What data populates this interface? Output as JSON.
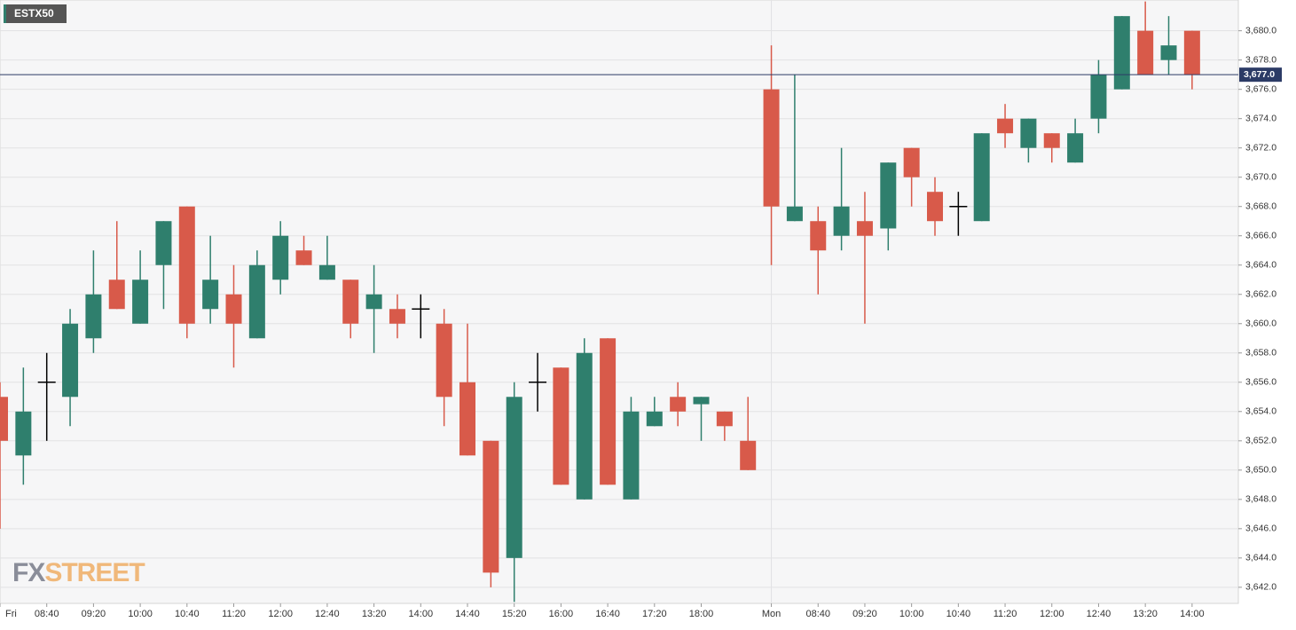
{
  "chart_data": {
    "type": "candlestick",
    "title": "ESTX50",
    "watermark": [
      "FX",
      "STREET"
    ],
    "categories": [
      "Fri",
      null,
      "08:40",
      null,
      "09:20",
      null,
      "10:00",
      null,
      "10:40",
      null,
      "11:20",
      null,
      "12:00",
      null,
      "12:40",
      null,
      "13:20",
      null,
      "14:00",
      null,
      "14:40",
      null,
      "15:20",
      null,
      "16:00",
      null,
      "16:40",
      null,
      "17:20",
      null,
      "18:00",
      null,
      null,
      "Mon",
      null,
      "08:40",
      null,
      "09:20",
      null,
      "10:00",
      null,
      "10:40",
      null,
      "11:20",
      null,
      "12:00",
      null,
      "12:40",
      null,
      "13:20",
      null,
      "14:00"
    ],
    "open": [
      3655,
      3651,
      3656,
      3655,
      3659,
      3663,
      3660,
      3664,
      3668,
      3661,
      3662,
      3659,
      3663,
      3665,
      3663,
      3663,
      3661,
      3661,
      3661,
      3660,
      3656,
      3652,
      3644,
      3656,
      3657,
      3648,
      3659,
      3648,
      3653,
      3655,
      3654.5,
      3654,
      3652,
      3676,
      3667,
      3667,
      3666,
      3667,
      3666.5,
      3672,
      3669,
      3668,
      3667,
      3674,
      3672,
      3673,
      3671,
      3674,
      3676,
      3680,
      3678,
      3680
    ],
    "high": [
      3656,
      3657,
      3658,
      3661,
      3665,
      3667,
      3665,
      3667,
      3668,
      3666,
      3664,
      3665,
      3667,
      3666,
      3666,
      3663,
      3664,
      3662,
      3662,
      3661,
      3660,
      3652,
      3656,
      3658,
      3657,
      3659,
      3659,
      3655,
      3655,
      3656,
      3655,
      3654,
      3655,
      3679,
      3677,
      3668,
      3672,
      3669,
      3671,
      3672,
      3670,
      3669,
      3673,
      3675,
      3674,
      3673,
      3674,
      3678,
      3681,
      3682,
      3681,
      3680
    ],
    "low": [
      3646,
      3649,
      3652,
      3653,
      3658,
      3661,
      3660,
      3661,
      3659,
      3660,
      3657,
      3659,
      3662,
      3664,
      3663,
      3659,
      3658,
      3659,
      3659,
      3653,
      3651,
      3642,
      3641,
      3654,
      3649,
      3648,
      3649,
      3648,
      3653,
      3653,
      3652,
      3652,
      3650,
      3664,
      3667,
      3662,
      3665,
      3660,
      3665,
      3668,
      3666,
      3666,
      3667,
      3672,
      3671,
      3671,
      3671,
      3673,
      3676,
      3677,
      3677,
      3676
    ],
    "close": [
      3652,
      3654,
      3656,
      3660,
      3662,
      3661,
      3663,
      3667,
      3660,
      3663,
      3660,
      3664,
      3666,
      3664,
      3664,
      3660,
      3662,
      3660,
      3661,
      3655,
      3651,
      3643,
      3655,
      3656,
      3649,
      3658,
      3649,
      3654,
      3654,
      3654,
      3655,
      3653,
      3650,
      3668,
      3668,
      3665,
      3668,
      3666,
      3671,
      3670,
      3667,
      3668,
      3673,
      3673,
      3674,
      3672,
      3673,
      3677,
      3681,
      3677,
      3679,
      3677
    ],
    "up_color": "#2f7f6d",
    "down_color": "#d85a4a",
    "flat_color": "#000000",
    "ylim": [
      3640.9,
      3682.1
    ],
    "yticks": [
      {
        "value": 3642,
        "label": "3,642.0"
      },
      {
        "value": 3644,
        "label": "3,644.0"
      },
      {
        "value": 3646,
        "label": "3,646.0"
      },
      {
        "value": 3648,
        "label": "3,648.0"
      },
      {
        "value": 3650,
        "label": "3,650.0"
      },
      {
        "value": 3652,
        "label": "3,652.0"
      },
      {
        "value": 3654,
        "label": "3,654.0"
      },
      {
        "value": 3656,
        "label": "3,656.0"
      },
      {
        "value": 3658,
        "label": "3,658.0"
      },
      {
        "value": 3660,
        "label": "3,660.0"
      },
      {
        "value": 3662,
        "label": "3,662.0"
      },
      {
        "value": 3664,
        "label": "3,664.0"
      },
      {
        "value": 3666,
        "label": "3,666.0"
      },
      {
        "value": 3668,
        "label": "3,668.0"
      },
      {
        "value": 3670,
        "label": "3,670.0"
      },
      {
        "value": 3672,
        "label": "3,672.0"
      },
      {
        "value": 3674,
        "label": "3,674.0"
      },
      {
        "value": 3676,
        "label": "3,676.0"
      },
      {
        "value": 3678,
        "label": "3,678.0"
      },
      {
        "value": 3680,
        "label": "3,680.0"
      }
    ],
    "last_price": {
      "value": 3677,
      "label": "3,677.0"
    },
    "grid": true
  }
}
